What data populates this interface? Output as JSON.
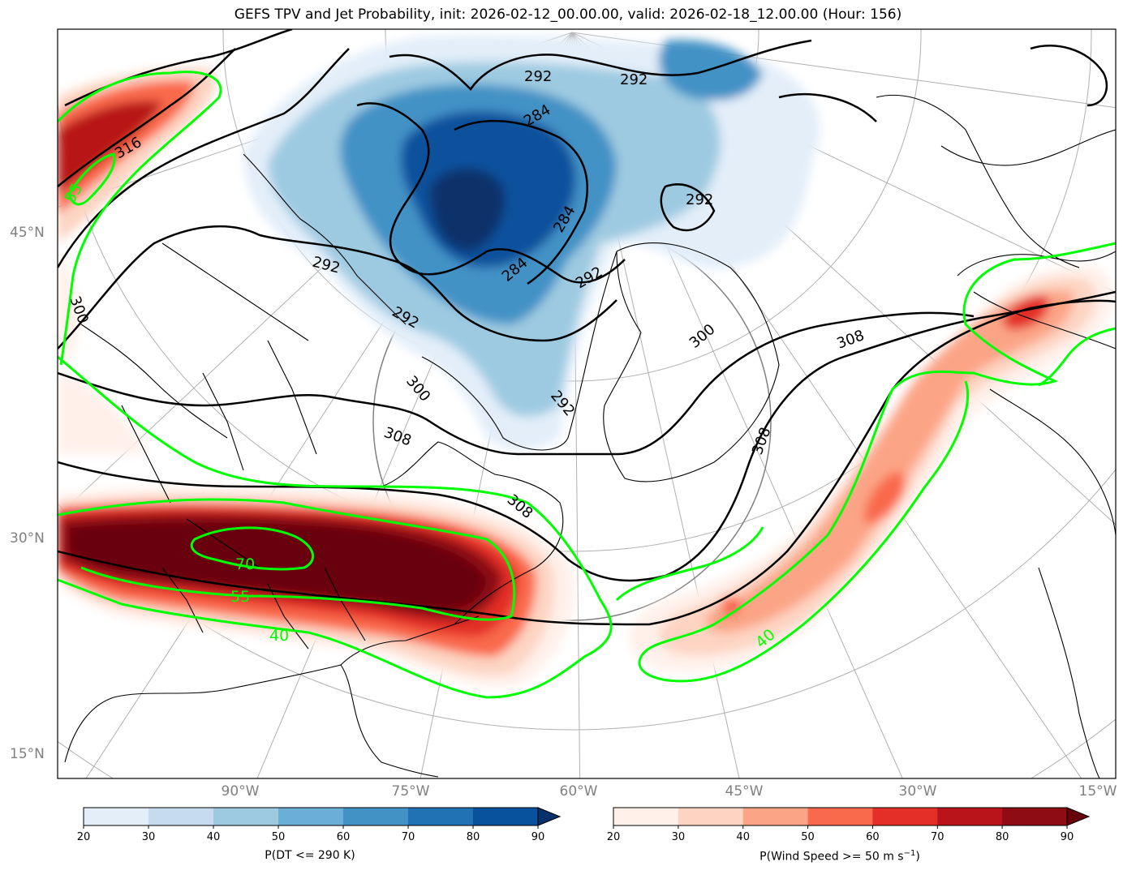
{
  "title": "GEFS TPV and Jet Probability, init: 2026-02-12_00.00.00, valid: 2026-02-18_12.00.00 (Hour: 156)",
  "lat_labels": [
    "45°N",
    "30°N",
    "15°N"
  ],
  "lon_labels": [
    "90°W",
    "75°W",
    "60°W",
    "45°W",
    "30°W",
    "15°W"
  ],
  "theta_contours": [
    "292",
    "292",
    "292",
    "284",
    "284",
    "284",
    "292",
    "292",
    "292",
    "300",
    "300",
    "300",
    "308",
    "308",
    "308",
    "308",
    "316"
  ],
  "jet_contours": [
    "40",
    "40",
    "55",
    "55",
    "70"
  ],
  "colorbars": [
    {
      "label": "P(DT <= 290 K)",
      "ticks": [
        "20",
        "30",
        "40",
        "50",
        "60",
        "70",
        "80",
        "90"
      ],
      "colors": [
        "#e3eef9",
        "#c6dbef",
        "#9ecae1",
        "#6baed6",
        "#4292c6",
        "#2171b5",
        "#08519c",
        "#08306b"
      ]
    },
    {
      "label": "P(Wind Speed >= 50 m s",
      "label_sup": "−1",
      "label_end": ")",
      "ticks": [
        "20",
        "30",
        "40",
        "50",
        "60",
        "70",
        "80",
        "90"
      ],
      "colors": [
        "#fff0ea",
        "#fdd4c2",
        "#fca486",
        "#f9694c",
        "#e32f27",
        "#b81419",
        "#8e0d14",
        "#67000d"
      ]
    }
  ]
}
